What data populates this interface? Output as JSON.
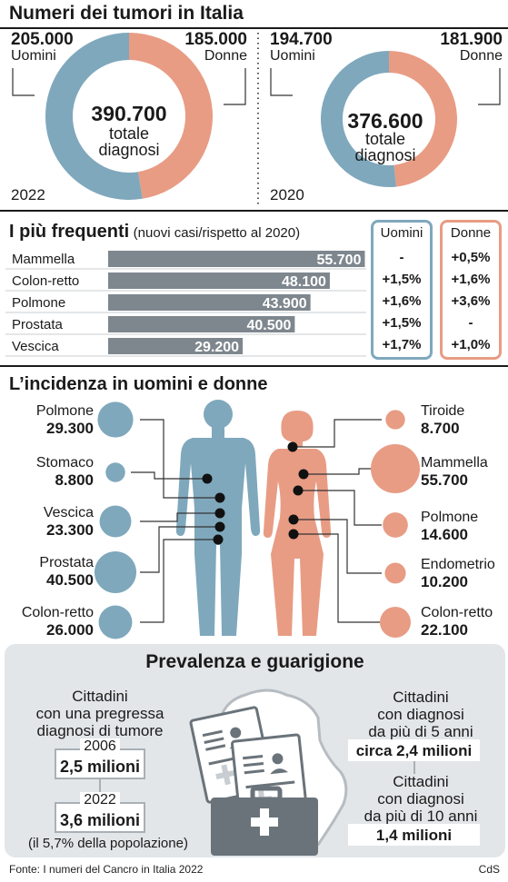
{
  "title": "Numeri dei tumori in Italia",
  "donut_2022": {
    "uomini_value": "205.000",
    "uomini_label": "Uomini",
    "donne_value": "185.000",
    "donne_label": "Donne",
    "total": "390.700",
    "total_l1": "totale",
    "total_l2": "diagnosi",
    "year": "2022"
  },
  "donut_2020": {
    "uomini_value": "194.700",
    "uomini_label": "Uomini",
    "donne_value": "181.900",
    "donne_label": "Donne",
    "total": "376.600",
    "total_l1": "totale",
    "total_l2": "diagnosi",
    "year": "2020"
  },
  "frequent": {
    "title": "I più frequenti",
    "subtitle": "(nuovi casi/rispetto al 2020)",
    "uomini_header": "Uomini",
    "donne_header": "Donne"
  },
  "incidence": {
    "title": "L’incidenza in uomini e donne",
    "men": [
      {
        "name": "Polmone",
        "value": "29.300"
      },
      {
        "name": "Stomaco",
        "value": "8.800"
      },
      {
        "name": "Vescica",
        "value": "23.300"
      },
      {
        "name": "Prostata",
        "value": "40.500"
      },
      {
        "name": "Colon-retto",
        "value": "26.000"
      }
    ],
    "women": [
      {
        "name": "Tiroide",
        "value": "8.700"
      },
      {
        "name": "Mammella",
        "value": "55.700"
      },
      {
        "name": "Polmone",
        "value": "14.600"
      },
      {
        "name": "Endometrio",
        "value": "10.200"
      },
      {
        "name": "Colon-retto",
        "value": "22.100"
      }
    ]
  },
  "prevalence": {
    "title": "Prevalenza e guarigione",
    "left_l1": "Cittadini",
    "left_l2": "con una pregressa",
    "left_l3": "diagnosi di tumore",
    "year1": "2006",
    "value1": "2,5 milioni",
    "year2": "2022",
    "value2": "3,6 milioni",
    "note": "(il 5,7% della popolazione)",
    "r1_l1": "Cittadini",
    "r1_l2": "con diagnosi",
    "r1_l3": "da più di 5 anni",
    "r1_value": "circa 2,4 milioni",
    "r2_l1": "Cittadini",
    "r2_l2": "con diagnosi",
    "r2_l3": "da più di 10 anni",
    "r2_value": "1,4 milioni"
  },
  "footer": {
    "source": "Fonte: I numeri del Cancro in Italia 2022",
    "credit": "CdS"
  },
  "colors": {
    "men": "#7fa8bc",
    "women": "#e89c84",
    "bar": "#7e878e",
    "uomini_box": "#7fa8bc",
    "donne_box": "#e89c84",
    "text": "#1a1a1a"
  },
  "chart_data": [
    {
      "type": "pie",
      "year": "2022",
      "categories": [
        "Uomini",
        "Donne"
      ],
      "values": [
        205000,
        185000
      ],
      "total": 390700
    },
    {
      "type": "pie",
      "year": "2020",
      "categories": [
        "Uomini",
        "Donne"
      ],
      "values": [
        194700,
        181900
      ],
      "total": 376600
    },
    {
      "type": "bar",
      "orientation": "horizontal",
      "categories": [
        "Mammella",
        "Colon-retto",
        "Polmone",
        "Prostata",
        "Vescica"
      ],
      "values": [
        55700,
        48100,
        43900,
        40500,
        29200
      ],
      "value_labels": [
        "55.700",
        "48.100",
        "43.900",
        "40.500",
        "29.200"
      ],
      "uomini_change": [
        "-",
        "+1,5%",
        "+1,6%",
        "+1,5%",
        "+1,7%"
      ],
      "donne_change": [
        "+0,5%",
        "+1,6%",
        "+3,6%",
        "-",
        "+1,0%"
      ]
    },
    {
      "type": "scatter",
      "series": [
        {
          "name": "Uomini",
          "categories": [
            "Polmone",
            "Stomaco",
            "Vescica",
            "Prostata",
            "Colon-retto"
          ],
          "values": [
            29300,
            8800,
            23300,
            40500,
            26000
          ]
        },
        {
          "name": "Donne",
          "categories": [
            "Tiroide",
            "Mammella",
            "Polmone",
            "Endometrio",
            "Colon-retto"
          ],
          "values": [
            8700,
            55700,
            14600,
            10200,
            22100
          ]
        }
      ]
    }
  ]
}
